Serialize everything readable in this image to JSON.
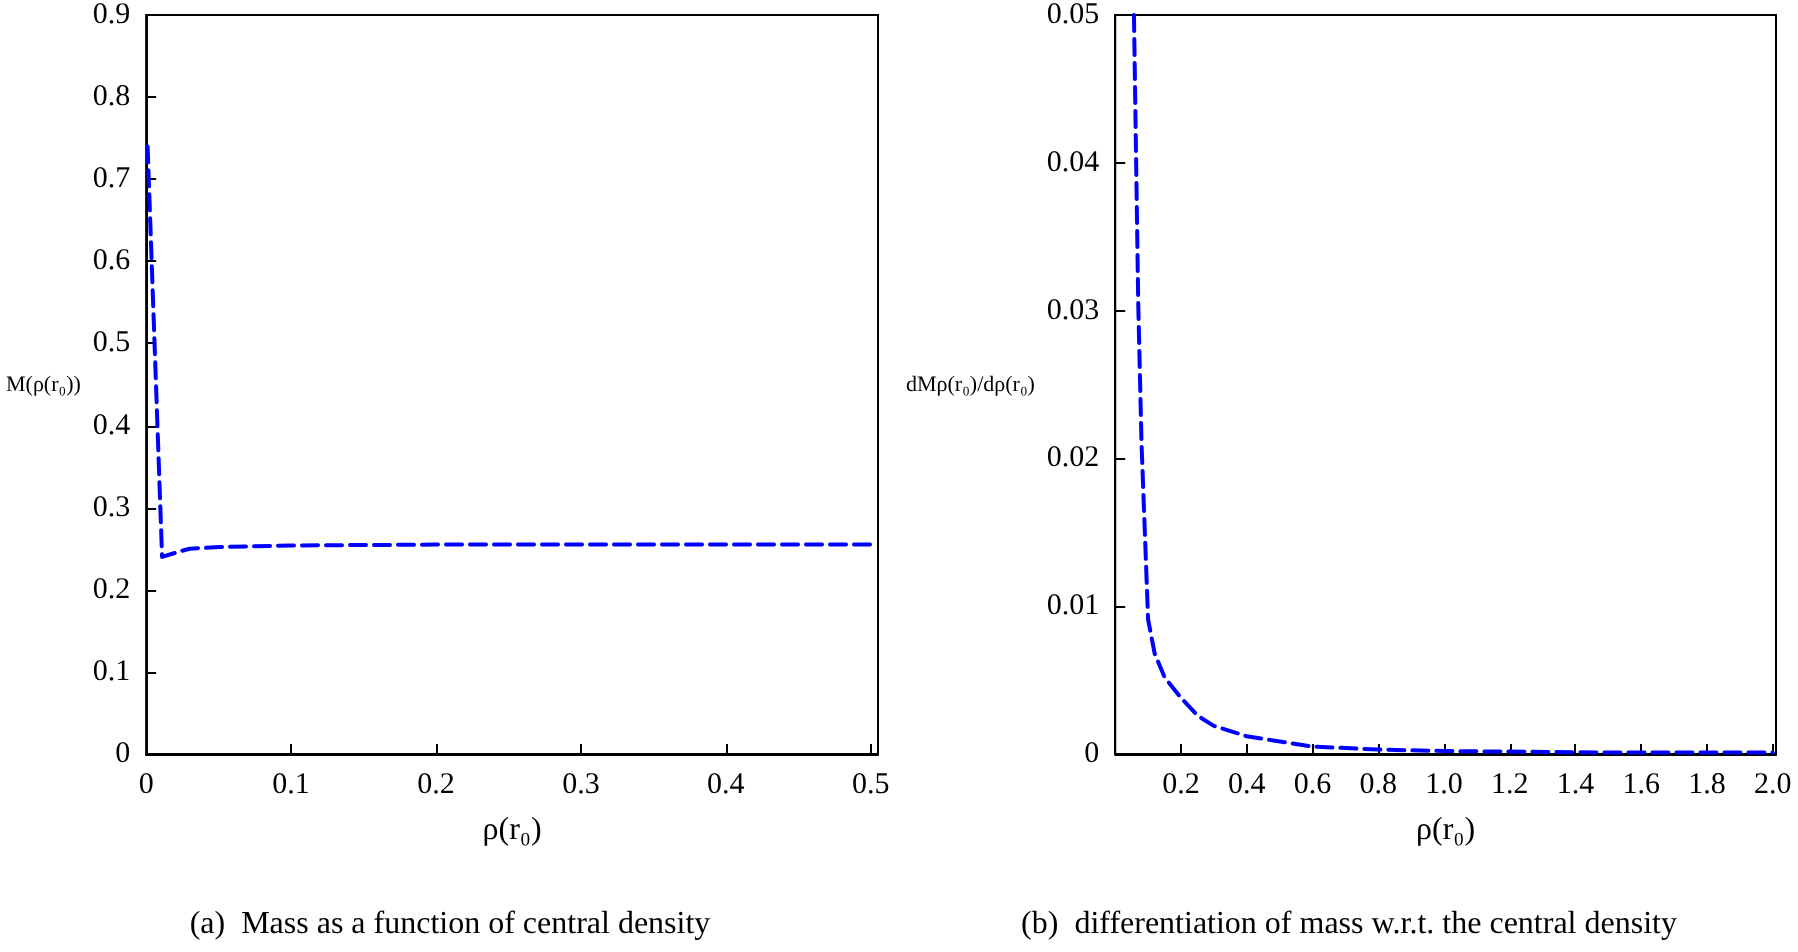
{
  "chart_data": [
    {
      "type": "line",
      "xlabel": "ρ(r₀)",
      "ylabel": "M(ρ(r₀))",
      "annotations": [
        "(a)  Mass as a function of central density"
      ],
      "xlim": [
        0,
        0.505
      ],
      "ylim": [
        0,
        0.9
      ],
      "xticks": [
        0,
        0.1,
        0.2,
        0.3,
        0.4,
        0.5
      ],
      "yticks": [
        0,
        0.1,
        0.2,
        0.3,
        0.4,
        0.5,
        0.6,
        0.7,
        0.8,
        0.9
      ],
      "grid": false,
      "marker": "none",
      "line_style": "dashed",
      "series": [
        {
          "color": "#0000ff",
          "x": [
            0.001,
            0.011,
            0.02,
            0.03,
            0.05,
            0.1,
            0.2,
            0.3,
            0.4,
            0.505
          ],
          "values": [
            0.74,
            0.24,
            0.245,
            0.25,
            0.252,
            0.254,
            0.255,
            0.255,
            0.255,
            0.255
          ]
        }
      ]
    },
    {
      "type": "line",
      "xlabel": "ρ(r₀)",
      "ylabel": "dMρ(r₀)/dρ(r₀)",
      "annotations": [
        "(b)  differentiation of mass w.r.t. the central density"
      ],
      "xlim": [
        0,
        2.01
      ],
      "ylim": [
        0,
        0.05
      ],
      "xticks": [
        0.2,
        0.4,
        0.6,
        0.8,
        {
          "value": 1,
          "label": "1.0"
        },
        1.2,
        1.4,
        1.6,
        1.8,
        {
          "value": 2,
          "label": "2.0"
        }
      ],
      "yticks": [
        0,
        0.01,
        0.02,
        0.03,
        0.04,
        0.05
      ],
      "grid": false,
      "marker": "none",
      "line_style": "dashed",
      "series": [
        {
          "color": "#0000ff",
          "x": [
            0.057,
            0.07,
            0.08,
            0.1,
            0.12,
            0.15,
            0.2,
            0.25,
            0.3,
            0.4,
            0.6,
            0.8,
            1.0,
            1.5,
            2.0
          ],
          "values": [
            0.05,
            0.0305,
            0.021,
            0.0091,
            0.0068,
            0.0052,
            0.0038,
            0.0026,
            0.0019,
            0.0012,
            0.0005,
            0.0003,
            0.0002,
            0.0001,
            0.0001
          ]
        }
      ]
    }
  ]
}
